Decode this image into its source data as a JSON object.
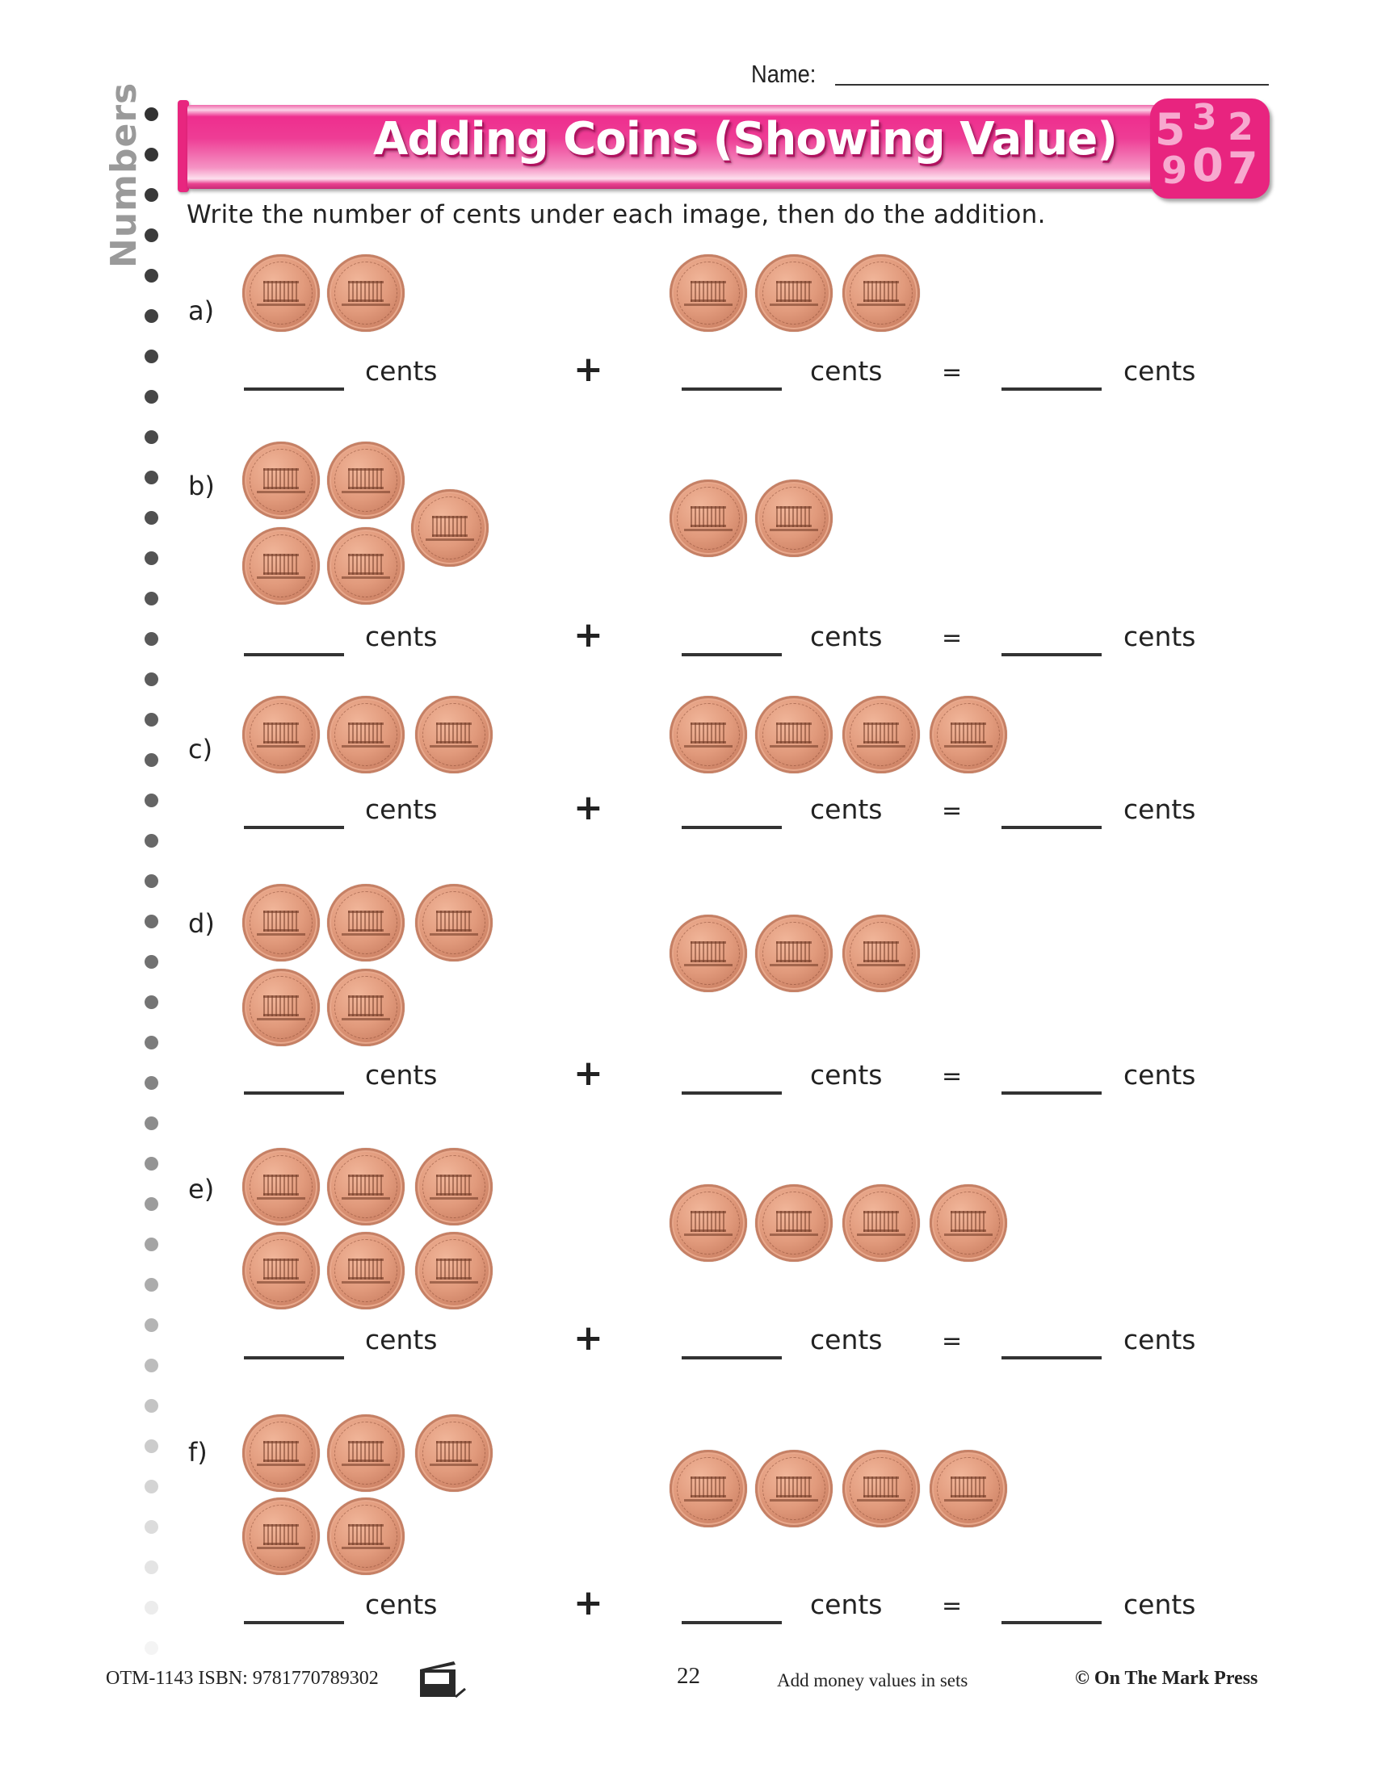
{
  "header": {
    "name_label": "Name:",
    "side_label": "Numbers",
    "title": "Adding Coins (Showing Value)",
    "badge_digits": [
      "5",
      "3",
      "2",
      "9",
      "0",
      "7"
    ],
    "instruction": "Write the number of cents under each image, then do the addition."
  },
  "colors": {
    "accent_pink": "#e8247f",
    "badge_digits": "#f7a9cf",
    "side_label": "#9a9a9a",
    "coin": "#e19a7c"
  },
  "labels": {
    "unit": "cents",
    "plus": "+",
    "equals": "="
  },
  "problems": [
    {
      "label": "a)",
      "left_coins": 2,
      "right_coins": 3,
      "coin": "penny"
    },
    {
      "label": "b)",
      "left_coins": 5,
      "right_coins": 2,
      "coin": "penny"
    },
    {
      "label": "c)",
      "left_coins": 3,
      "right_coins": 4,
      "coin": "penny"
    },
    {
      "label": "d)",
      "left_coins": 5,
      "right_coins": 3,
      "coin": "penny"
    },
    {
      "label": "e)",
      "left_coins": 6,
      "right_coins": 4,
      "coin": "penny"
    },
    {
      "label": "f)",
      "left_coins": 5,
      "right_coins": 4,
      "coin": "penny"
    }
  ],
  "footer": {
    "code": "OTM-1143  ISBN: 9781770789302",
    "page_number": "22",
    "topic": "Add money values in sets",
    "copyright": "© On The Mark Press"
  }
}
